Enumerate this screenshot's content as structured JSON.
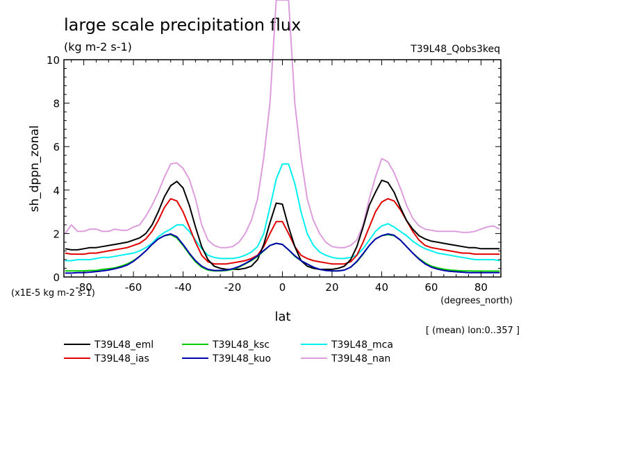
{
  "title": "large scale precipitation flux",
  "subtitle": "(kg m-2 s-1)",
  "run_label": "T39L48_Qobs3keq",
  "y_units_note": "(x1E-5 kg m-2 s-1)",
  "x_units_note": "(degrees_north)",
  "mean_note": "[ (mean) lon:0..357 ]",
  "chart_data": {
    "type": "line",
    "xlabel": "lat",
    "ylabel": "sh_dppn_zonal",
    "xlim": [
      -88,
      88
    ],
    "ylim": [
      0,
      10
    ],
    "xticks": [
      -80,
      -60,
      -40,
      -20,
      0,
      20,
      40,
      60,
      80
    ],
    "xtick_labels": [
      "-80",
      "-60",
      "-40",
      "-20",
      "0",
      "20",
      "40",
      "60",
      "80"
    ],
    "yticks": [
      0,
      2,
      4,
      6,
      8,
      10
    ],
    "ytick_labels": [
      "0",
      "2",
      "4",
      "6",
      "8",
      "10"
    ],
    "x": [
      -87.5,
      -85,
      -82.5,
      -80,
      -77.5,
      -75,
      -72.5,
      -70,
      -67.5,
      -65,
      -62.5,
      -60,
      -57.5,
      -55,
      -52.5,
      -50,
      -47.5,
      -45,
      -42.5,
      -40,
      -37.5,
      -35,
      -32.5,
      -30,
      -27.5,
      -25,
      -22.5,
      -20,
      -17.5,
      -15,
      -12.5,
      -10,
      -7.5,
      -5,
      -2.5,
      0,
      2.5,
      5,
      7.5,
      10,
      12.5,
      15,
      17.5,
      20,
      22.5,
      25,
      27.5,
      30,
      32.5,
      35,
      37.5,
      40,
      42.5,
      45,
      47.5,
      50,
      52.5,
      55,
      57.5,
      60,
      62.5,
      65,
      67.5,
      70,
      72.5,
      75,
      77.5,
      80,
      82.5,
      85,
      87.5
    ],
    "series": [
      {
        "name": "T39L48_eml",
        "color": "#000000",
        "values": [
          1.3,
          1.25,
          1.25,
          1.3,
          1.35,
          1.35,
          1.4,
          1.45,
          1.5,
          1.55,
          1.6,
          1.7,
          1.8,
          2.0,
          2.4,
          3.0,
          3.7,
          4.2,
          4.4,
          4.1,
          3.3,
          2.3,
          1.4,
          0.8,
          0.5,
          0.4,
          0.35,
          0.35,
          0.35,
          0.4,
          0.5,
          0.8,
          1.5,
          2.5,
          3.4,
          3.35,
          2.3,
          1.4,
          0.75,
          0.5,
          0.4,
          0.35,
          0.35,
          0.35,
          0.4,
          0.5,
          0.8,
          1.4,
          2.3,
          3.3,
          3.9,
          4.45,
          4.35,
          3.9,
          3.2,
          2.6,
          2.2,
          1.9,
          1.75,
          1.65,
          1.6,
          1.55,
          1.5,
          1.45,
          1.4,
          1.35,
          1.35,
          1.3,
          1.3,
          1.3,
          1.3
        ]
      },
      {
        "name": "T39L48_ias",
        "color": "#e00000",
        "values": [
          1.1,
          1.05,
          1.05,
          1.05,
          1.1,
          1.1,
          1.15,
          1.2,
          1.25,
          1.3,
          1.35,
          1.45,
          1.55,
          1.75,
          2.1,
          2.6,
          3.2,
          3.6,
          3.5,
          3.0,
          2.3,
          1.6,
          1.0,
          0.7,
          0.6,
          0.6,
          0.6,
          0.65,
          0.7,
          0.75,
          0.85,
          1.0,
          1.4,
          2.0,
          2.55,
          2.55,
          2.0,
          1.4,
          1.0,
          0.85,
          0.75,
          0.7,
          0.65,
          0.6,
          0.6,
          0.6,
          0.7,
          1.0,
          1.6,
          2.3,
          3.0,
          3.45,
          3.6,
          3.5,
          3.1,
          2.6,
          2.1,
          1.7,
          1.45,
          1.35,
          1.3,
          1.25,
          1.2,
          1.15,
          1.1,
          1.1,
          1.05,
          1.05,
          1.05,
          1.05,
          1.05
        ]
      },
      {
        "name": "T39L48_ksc",
        "color": "#00cc00",
        "values": [
          0.28,
          0.28,
          0.28,
          0.28,
          0.3,
          0.3,
          0.35,
          0.38,
          0.42,
          0.5,
          0.6,
          0.75,
          0.95,
          1.2,
          1.5,
          1.75,
          1.9,
          1.95,
          1.8,
          1.45,
          1.05,
          0.7,
          0.45,
          0.32,
          0.28,
          0.28,
          0.3,
          0.35,
          0.45,
          0.6,
          0.75,
          0.95,
          1.2,
          1.45,
          1.55,
          1.5,
          1.25,
          0.95,
          0.75,
          0.6,
          0.45,
          0.35,
          0.3,
          0.28,
          0.28,
          0.32,
          0.45,
          0.7,
          1.05,
          1.45,
          1.75,
          1.9,
          1.95,
          1.9,
          1.7,
          1.4,
          1.1,
          0.85,
          0.65,
          0.5,
          0.42,
          0.36,
          0.32,
          0.3,
          0.28,
          0.28,
          0.27,
          0.27,
          0.27,
          0.27,
          0.27
        ]
      },
      {
        "name": "T39L48_kuo",
        "color": "#0000b0",
        "values": [
          0.18,
          0.18,
          0.2,
          0.2,
          0.22,
          0.25,
          0.28,
          0.32,
          0.38,
          0.45,
          0.55,
          0.72,
          0.95,
          1.2,
          1.5,
          1.75,
          1.9,
          1.98,
          1.85,
          1.5,
          1.1,
          0.75,
          0.5,
          0.35,
          0.3,
          0.3,
          0.32,
          0.38,
          0.48,
          0.62,
          0.78,
          0.98,
          1.22,
          1.45,
          1.55,
          1.5,
          1.25,
          0.98,
          0.75,
          0.6,
          0.45,
          0.35,
          0.3,
          0.28,
          0.28,
          0.32,
          0.45,
          0.72,
          1.08,
          1.45,
          1.75,
          1.9,
          1.98,
          1.92,
          1.7,
          1.4,
          1.1,
          0.82,
          0.6,
          0.45,
          0.36,
          0.3,
          0.26,
          0.24,
          0.22,
          0.2,
          0.2,
          0.2,
          0.2,
          0.2,
          0.2
        ]
      },
      {
        "name": "T39L48_mca",
        "color": "#00f0f0",
        "values": [
          0.75,
          0.75,
          0.8,
          0.8,
          0.8,
          0.85,
          0.9,
          0.9,
          0.95,
          1.0,
          1.05,
          1.1,
          1.2,
          1.35,
          1.55,
          1.85,
          2.05,
          2.2,
          2.4,
          2.4,
          2.1,
          1.7,
          1.3,
          1.0,
          0.9,
          0.85,
          0.85,
          0.85,
          0.9,
          1.0,
          1.15,
          1.4,
          2.0,
          3.2,
          4.5,
          5.2,
          5.2,
          4.3,
          3.0,
          2.0,
          1.45,
          1.15,
          1.0,
          0.9,
          0.85,
          0.85,
          0.9,
          1.0,
          1.3,
          1.7,
          2.1,
          2.35,
          2.45,
          2.3,
          2.1,
          1.9,
          1.65,
          1.45,
          1.3,
          1.2,
          1.1,
          1.05,
          1.0,
          0.95,
          0.9,
          0.85,
          0.8,
          0.8,
          0.8,
          0.8,
          0.75
        ]
      },
      {
        "name": "T39L48_nan",
        "color": "#dd9ddd",
        "values": [
          2.0,
          2.4,
          2.1,
          2.1,
          2.2,
          2.2,
          2.1,
          2.1,
          2.2,
          2.15,
          2.15,
          2.3,
          2.4,
          2.8,
          3.3,
          3.9,
          4.6,
          5.2,
          5.25,
          5.0,
          4.5,
          3.6,
          2.4,
          1.7,
          1.45,
          1.35,
          1.35,
          1.4,
          1.6,
          2.0,
          2.6,
          3.6,
          5.5,
          8.0,
          10.0,
          10.0,
          10.0,
          8.0,
          5.5,
          3.6,
          2.6,
          2.0,
          1.6,
          1.4,
          1.35,
          1.35,
          1.45,
          1.7,
          2.4,
          3.6,
          4.6,
          5.45,
          5.3,
          4.8,
          4.1,
          3.3,
          2.7,
          2.35,
          2.2,
          2.15,
          2.1,
          2.1,
          2.1,
          2.1,
          2.05,
          2.05,
          2.1,
          2.2,
          2.3,
          2.35,
          2.2
        ]
      }
    ],
    "legend": "below-left",
    "grid": false
  }
}
